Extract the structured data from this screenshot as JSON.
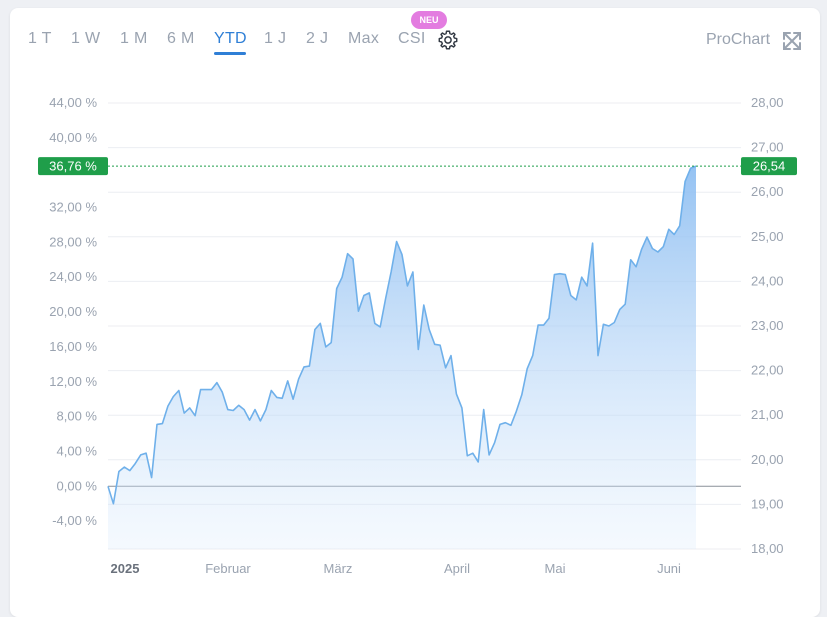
{
  "tabs": [
    {
      "label": "1 T",
      "active": false
    },
    {
      "label": "1 W",
      "active": false
    },
    {
      "label": "1 M",
      "active": false
    },
    {
      "label": "6 M",
      "active": false
    },
    {
      "label": "YTD",
      "active": true
    },
    {
      "label": "1 J",
      "active": false
    },
    {
      "label": "2 J",
      "active": false
    },
    {
      "label": "Max",
      "active": false
    },
    {
      "label": "CSI",
      "active": false
    }
  ],
  "badge": "NEU",
  "prochart_label": "ProChart",
  "icons": {
    "settings": "gear-icon",
    "expand": "expand-arrows-icon"
  },
  "colors": {
    "accent": "#2f7fd6",
    "line": "#6fb0ea",
    "fill": "#a9cff7",
    "current": "#1f9e4a",
    "zero_line": "#8a9099",
    "grid": "#eceef2",
    "text_muted": "#9aa3b0"
  },
  "chart_data": {
    "type": "area",
    "title": "",
    "xlabel": "",
    "ylabel": "",
    "x_labels": [
      "2025",
      "Februar",
      "März",
      "April",
      "Mai",
      "Juni"
    ],
    "y_left": {
      "ticks": [
        "44,00 %",
        "40,00 %",
        "32,00 %",
        "28,00 %",
        "24,00 %",
        "20,00 %",
        "16,00 %",
        "12,00 %",
        "8,00 %",
        "4,00 %",
        "0,00 %",
        "-4,00 %"
      ],
      "range": [
        -7.2,
        44.0
      ]
    },
    "y_right": {
      "ticks": [
        "28,00",
        "27,00",
        "26,00",
        "25,00",
        "24,00",
        "23,00",
        "22,00",
        "21,00",
        "20,00",
        "19,00",
        "18,00"
      ],
      "range": [
        18.0,
        28.0
      ]
    },
    "current": {
      "percent": 36.76,
      "percent_label": "36,76 %",
      "price": 26.54,
      "price_label": "26,54"
    },
    "grid": true,
    "series": [
      {
        "values": [
          0.0,
          -2.0,
          1.7,
          2.2,
          1.8,
          2.6,
          3.6,
          3.8,
          1.0,
          7.1,
          7.2,
          9.2,
          10.3,
          11.0,
          8.4,
          9.0,
          8.1,
          11.1,
          11.1,
          11.1,
          11.9,
          10.8,
          8.8,
          8.7,
          9.3,
          8.8,
          7.6,
          8.8,
          7.5,
          8.8,
          11.0,
          10.2,
          10.1,
          12.1,
          10.0,
          12.3,
          13.7,
          13.8,
          18.0,
          18.7,
          16.0,
          16.5,
          22.7,
          24.0,
          26.7,
          26.1,
          20.1,
          21.9,
          22.2,
          18.7,
          18.3,
          21.6,
          24.6,
          28.1,
          26.6,
          23.0,
          24.6,
          15.7,
          20.8,
          18.0,
          16.3,
          16.2,
          13.6,
          15.0,
          10.6,
          9.0,
          3.5,
          3.8,
          2.8,
          8.8,
          3.6,
          5.0,
          7.1,
          7.3,
          7.0,
          8.6,
          10.5,
          13.5,
          15.0,
          18.5,
          18.5,
          19.3,
          24.3,
          24.4,
          24.3,
          21.9,
          21.4,
          24.0,
          23.0,
          27.9,
          15.0,
          18.6,
          18.4,
          18.8,
          20.3,
          20.9,
          26.0,
          25.2,
          27.2,
          28.6,
          27.3,
          26.9,
          27.5,
          29.5,
          28.9,
          29.9,
          35.0,
          36.5,
          36.76
        ]
      }
    ]
  }
}
